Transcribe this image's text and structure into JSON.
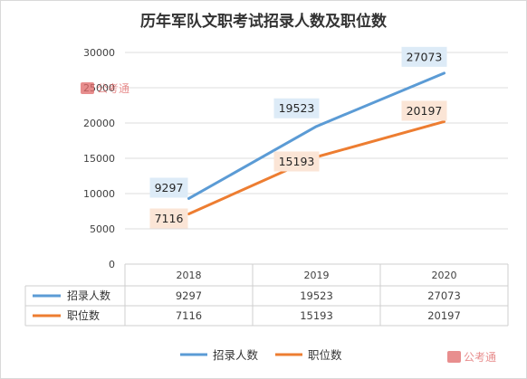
{
  "chart_data": {
    "type": "line",
    "title": "历年军队文职考试招录人数及职位数",
    "categories": [
      "2018",
      "2019",
      "2020"
    ],
    "ylim": [
      0,
      30000
    ],
    "yticks": [
      0,
      5000,
      10000,
      15000,
      20000,
      25000,
      30000
    ],
    "grid": true,
    "legend": "bottom",
    "series": [
      {
        "name": "招录人数",
        "color": "#5b9bd5",
        "label_bg": "#ddebf7",
        "values": [
          9297,
          19523,
          27073
        ]
      },
      {
        "name": "职位数",
        "color": "#ed7d31",
        "label_bg": "#fbe5d6",
        "values": [
          7116,
          15193,
          20197
        ]
      }
    ],
    "data_table": true
  },
  "watermark": {
    "text": "公考通",
    "color": "#e06868"
  }
}
